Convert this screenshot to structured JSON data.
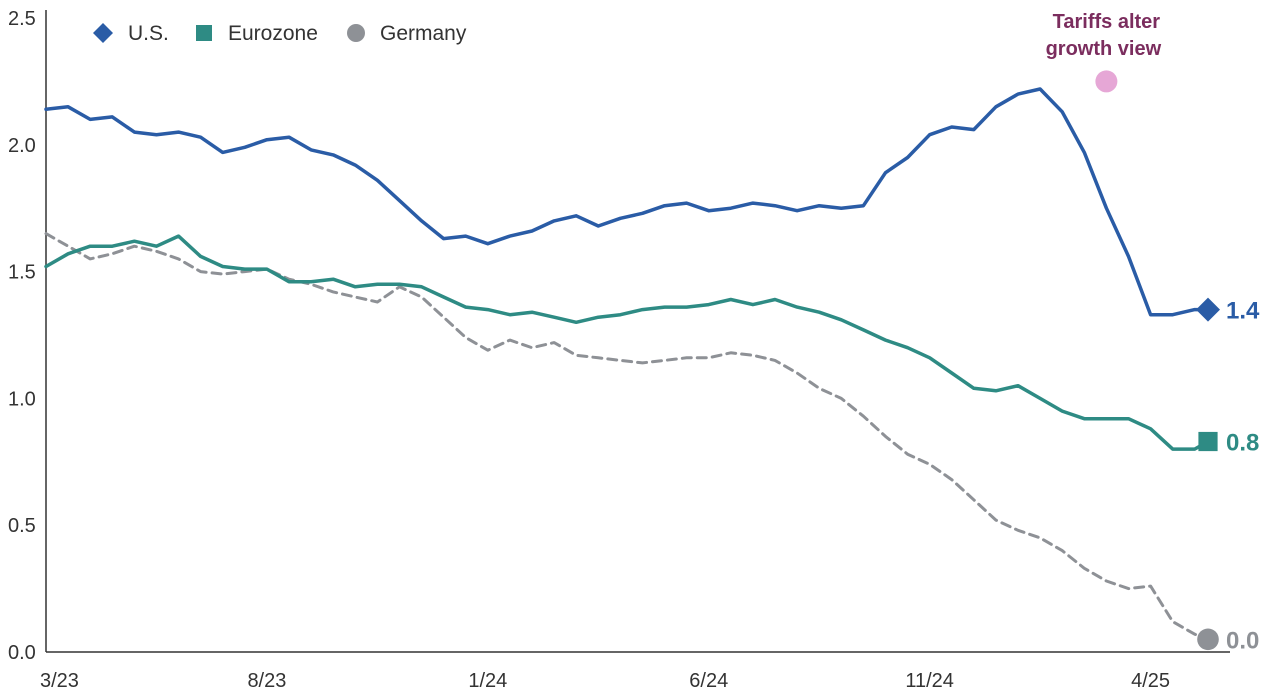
{
  "chart_data": {
    "type": "line",
    "title": "",
    "xlabel": "",
    "ylabel": "",
    "x_tick_labels": [
      "3/23",
      "8/23",
      "1/24",
      "6/24",
      "11/24",
      "4/25"
    ],
    "x_range": [
      "3/23",
      "5/25"
    ],
    "ylim": [
      0,
      2.5
    ],
    "y_ticks": [
      "0.0",
      "0.5",
      "1.0",
      "1.5",
      "2.0",
      "2.5"
    ],
    "grid": false,
    "legend_position": "top-left",
    "annotation": {
      "text_line1": "Tariffs alter",
      "text_line2": "growth view",
      "x": "3/25",
      "y": 2.25,
      "color": "#e6a7d6",
      "text_color": "#7b2d5e"
    },
    "series": [
      {
        "name": "U.S.",
        "color": "#2a5ca6",
        "marker": "diamond",
        "dashed": false,
        "end_label": "1.4",
        "x_months": [
          0,
          0.5,
          1,
          1.5,
          2,
          2.5,
          3,
          3.5,
          4,
          4.5,
          5,
          5.5,
          6,
          6.5,
          7,
          7.5,
          8,
          8.5,
          9,
          9.5,
          10,
          10.5,
          11,
          11.5,
          12,
          12.5,
          13,
          13.5,
          14,
          14.5,
          15,
          15.5,
          16,
          16.5,
          17,
          17.5,
          18,
          18.5,
          19,
          19.5,
          20,
          20.5,
          21,
          21.5,
          22,
          22.5,
          23,
          23.5,
          24,
          24.5,
          25,
          25.5,
          26,
          26.3
        ],
        "values": [
          2.14,
          2.15,
          2.1,
          2.11,
          2.05,
          2.04,
          2.05,
          2.03,
          1.97,
          1.99,
          2.02,
          2.03,
          1.98,
          1.96,
          1.92,
          1.86,
          1.78,
          1.7,
          1.63,
          1.64,
          1.61,
          1.64,
          1.66,
          1.7,
          1.72,
          1.68,
          1.71,
          1.73,
          1.76,
          1.77,
          1.74,
          1.75,
          1.77,
          1.76,
          1.74,
          1.76,
          1.75,
          1.76,
          1.89,
          1.95,
          2.04,
          2.07,
          2.06,
          2.15,
          2.2,
          2.22,
          2.13,
          1.97,
          1.75,
          1.56,
          1.33,
          1.33,
          1.35,
          1.35
        ]
      },
      {
        "name": "Eurozone",
        "color": "#2e8b84",
        "marker": "square",
        "dashed": false,
        "end_label": "0.8",
        "x_months": [
          0,
          0.5,
          1,
          1.5,
          2,
          2.5,
          3,
          3.5,
          4,
          4.5,
          5,
          5.5,
          6,
          6.5,
          7,
          7.5,
          8,
          8.5,
          9,
          9.5,
          10,
          10.5,
          11,
          11.5,
          12,
          12.5,
          13,
          13.5,
          14,
          14.5,
          15,
          15.5,
          16,
          16.5,
          17,
          17.5,
          18,
          18.5,
          19,
          19.5,
          20,
          20.5,
          21,
          21.5,
          22,
          22.5,
          23,
          23.5,
          24,
          24.5,
          25,
          25.5,
          26,
          26.3
        ],
        "values": [
          1.52,
          1.57,
          1.6,
          1.6,
          1.62,
          1.6,
          1.64,
          1.56,
          1.52,
          1.51,
          1.51,
          1.46,
          1.46,
          1.47,
          1.44,
          1.45,
          1.45,
          1.44,
          1.4,
          1.36,
          1.35,
          1.33,
          1.34,
          1.32,
          1.3,
          1.32,
          1.33,
          1.35,
          1.36,
          1.36,
          1.37,
          1.39,
          1.37,
          1.39,
          1.36,
          1.34,
          1.31,
          1.27,
          1.23,
          1.2,
          1.16,
          1.1,
          1.04,
          1.03,
          1.05,
          1.0,
          0.95,
          0.92,
          0.92,
          0.92,
          0.88,
          0.8,
          0.8,
          0.83
        ]
      },
      {
        "name": "Germany",
        "color": "#8e9196",
        "marker": "circle",
        "dashed": true,
        "end_label": "0.0",
        "x_months": [
          0,
          0.5,
          1,
          1.5,
          2,
          2.5,
          3,
          3.5,
          4,
          4.5,
          5,
          5.5,
          6,
          6.5,
          7,
          7.5,
          8,
          8.5,
          9,
          9.5,
          10,
          10.5,
          11,
          11.5,
          12,
          12.5,
          13,
          13.5,
          14,
          14.5,
          15,
          15.5,
          16,
          16.5,
          17,
          17.5,
          18,
          18.5,
          19,
          19.5,
          20,
          20.5,
          21,
          21.5,
          22,
          22.5,
          23,
          23.5,
          24,
          24.5,
          25,
          25.5,
          26,
          26.3
        ],
        "values": [
          1.65,
          1.6,
          1.55,
          1.57,
          1.6,
          1.58,
          1.55,
          1.5,
          1.49,
          1.5,
          1.51,
          1.47,
          1.45,
          1.42,
          1.4,
          1.38,
          1.44,
          1.4,
          1.32,
          1.24,
          1.19,
          1.23,
          1.2,
          1.22,
          1.17,
          1.16,
          1.15,
          1.14,
          1.15,
          1.16,
          1.16,
          1.18,
          1.17,
          1.15,
          1.1,
          1.04,
          1.0,
          0.93,
          0.85,
          0.78,
          0.74,
          0.68,
          0.6,
          0.52,
          0.48,
          0.45,
          0.4,
          0.33,
          0.28,
          0.25,
          0.26,
          0.12,
          0.07,
          0.05
        ]
      }
    ]
  }
}
